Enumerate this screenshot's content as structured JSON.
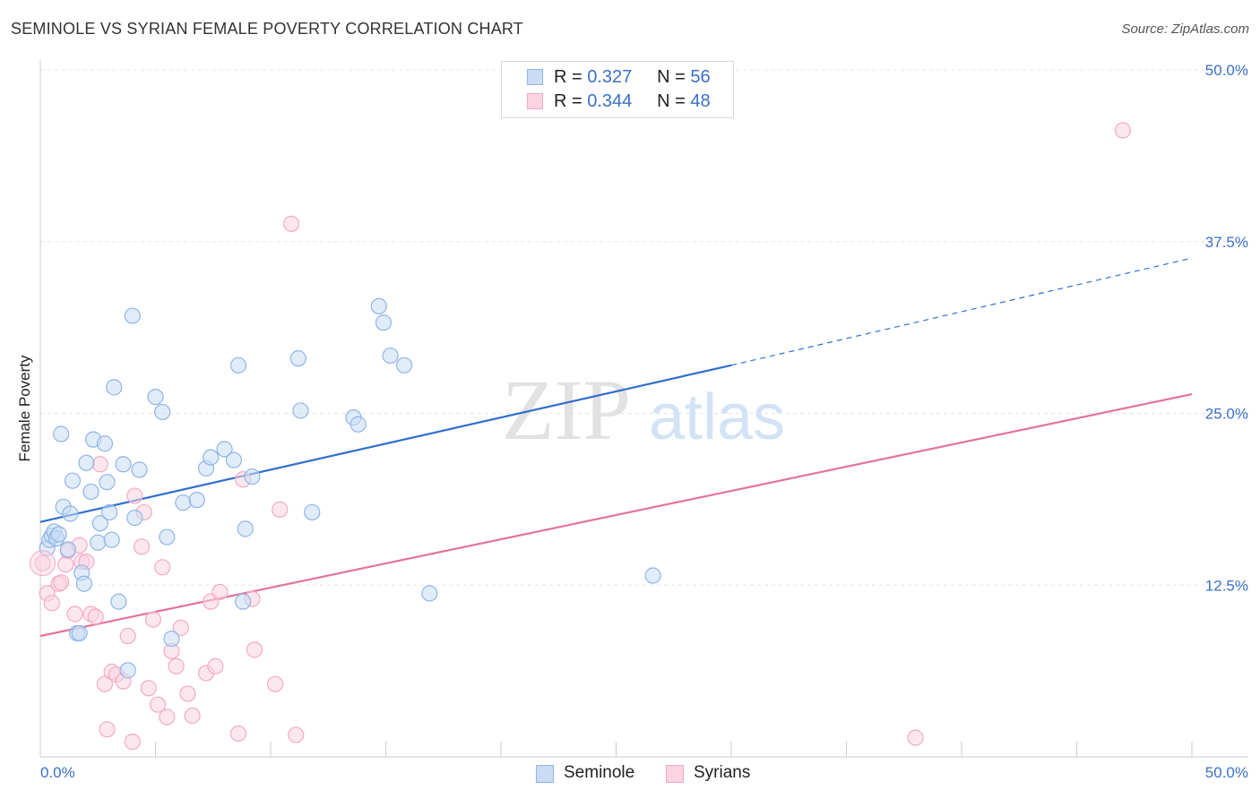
{
  "header": {
    "title": "SEMINOLE VS SYRIAN FEMALE POVERTY CORRELATION CHART",
    "source": "Source: ZipAtlas.com"
  },
  "watermark": {
    "zip": "ZIP",
    "atlas": "atlas"
  },
  "legend": {
    "r_label": "R =",
    "n_label": "N =",
    "rows": [
      {
        "r": "0.327",
        "n": "56"
      },
      {
        "r": "0.344",
        "n": "48"
      }
    ]
  },
  "chart_data": {
    "type": "scatter",
    "title": "SEMINOLE VS SYRIAN FEMALE POVERTY CORRELATION CHART",
    "xlabel": "",
    "ylabel": "Female Poverty",
    "xlim": [
      0,
      50
    ],
    "ylim": [
      0,
      50
    ],
    "x_tick_labels": [
      "0.0%",
      "50.0%"
    ],
    "y_ticks": [
      12.5,
      25.0,
      37.5,
      50.0
    ],
    "y_tick_labels": [
      "12.5%",
      "25.0%",
      "37.5%",
      "50.0%"
    ],
    "grid": true,
    "legend_position": "top-center",
    "series": [
      {
        "name": "Seminole",
        "color": "#8fb5e8",
        "line_color": "#2f6fce",
        "r": 0.327,
        "n": 56,
        "trend": {
          "x0": 0,
          "y0": 17.1,
          "x1": 30,
          "y1": 28.5,
          "dashed_to_x": 50,
          "dashed_to_y": 36.3
        },
        "points": [
          [
            0.3,
            15.2
          ],
          [
            0.4,
            15.8
          ],
          [
            0.5,
            16.1
          ],
          [
            0.6,
            16.4
          ],
          [
            0.7,
            15.9
          ],
          [
            0.8,
            16.2
          ],
          [
            0.9,
            23.5
          ],
          [
            1.0,
            18.2
          ],
          [
            1.2,
            15.1
          ],
          [
            1.3,
            17.7
          ],
          [
            1.4,
            20.1
          ],
          [
            1.6,
            9.0
          ],
          [
            1.7,
            9.0
          ],
          [
            1.8,
            13.4
          ],
          [
            1.9,
            12.6
          ],
          [
            2.0,
            21.4
          ],
          [
            2.2,
            19.3
          ],
          [
            2.3,
            23.1
          ],
          [
            2.5,
            15.6
          ],
          [
            2.6,
            17.0
          ],
          [
            2.8,
            22.8
          ],
          [
            2.9,
            20.0
          ],
          [
            3.0,
            17.8
          ],
          [
            3.1,
            15.8
          ],
          [
            3.2,
            26.9
          ],
          [
            3.4,
            11.3
          ],
          [
            3.6,
            21.3
          ],
          [
            3.8,
            6.3
          ],
          [
            4.0,
            32.1
          ],
          [
            4.1,
            17.4
          ],
          [
            4.3,
            20.9
          ],
          [
            5.0,
            26.2
          ],
          [
            5.3,
            25.1
          ],
          [
            5.5,
            16.0
          ],
          [
            5.7,
            8.6
          ],
          [
            6.2,
            18.5
          ],
          [
            6.8,
            18.7
          ],
          [
            7.2,
            21.0
          ],
          [
            7.4,
            21.8
          ],
          [
            8.0,
            22.4
          ],
          [
            8.4,
            21.6
          ],
          [
            8.6,
            28.5
          ],
          [
            8.8,
            11.3
          ],
          [
            8.9,
            16.6
          ],
          [
            9.2,
            20.4
          ],
          [
            11.2,
            29.0
          ],
          [
            11.3,
            25.2
          ],
          [
            11.8,
            17.8
          ],
          [
            13.6,
            24.7
          ],
          [
            13.8,
            24.2
          ],
          [
            14.7,
            32.8
          ],
          [
            14.9,
            31.6
          ],
          [
            15.2,
            29.2
          ],
          [
            15.8,
            28.5
          ],
          [
            16.9,
            11.9
          ],
          [
            26.6,
            13.2
          ]
        ]
      },
      {
        "name": "Syrians",
        "color": "#f4aac3",
        "line_color": "#e3739b",
        "r": 0.344,
        "n": 48,
        "trend": {
          "x0": 0,
          "y0": 8.8,
          "x1": 50,
          "y1": 26.4
        },
        "points": [
          [
            0.1,
            14.1
          ],
          [
            0.3,
            11.9
          ],
          [
            0.5,
            11.2
          ],
          [
            0.8,
            12.6
          ],
          [
            0.9,
            12.7
          ],
          [
            1.1,
            14.0
          ],
          [
            1.2,
            15.0
          ],
          [
            1.5,
            10.4
          ],
          [
            1.7,
            15.4
          ],
          [
            1.8,
            14.2
          ],
          [
            2.0,
            14.2
          ],
          [
            2.2,
            10.4
          ],
          [
            2.4,
            10.2
          ],
          [
            2.6,
            21.3
          ],
          [
            2.8,
            5.3
          ],
          [
            2.9,
            2.0
          ],
          [
            3.1,
            6.2
          ],
          [
            3.3,
            6.0
          ],
          [
            3.6,
            5.5
          ],
          [
            3.8,
            8.8
          ],
          [
            4.0,
            1.1
          ],
          [
            4.1,
            19.0
          ],
          [
            4.4,
            15.3
          ],
          [
            4.5,
            17.8
          ],
          [
            4.7,
            5.0
          ],
          [
            4.9,
            10.0
          ],
          [
            5.1,
            3.8
          ],
          [
            5.3,
            13.8
          ],
          [
            5.5,
            2.9
          ],
          [
            5.7,
            7.7
          ],
          [
            5.9,
            6.6
          ],
          [
            6.1,
            9.4
          ],
          [
            6.4,
            4.6
          ],
          [
            6.6,
            3.0
          ],
          [
            7.2,
            6.1
          ],
          [
            7.4,
            11.3
          ],
          [
            7.6,
            6.6
          ],
          [
            7.8,
            12.0
          ],
          [
            8.6,
            1.7
          ],
          [
            8.8,
            20.2
          ],
          [
            9.2,
            11.5
          ],
          [
            9.3,
            7.8
          ],
          [
            10.2,
            5.3
          ],
          [
            10.4,
            18.0
          ],
          [
            10.9,
            38.8
          ],
          [
            11.1,
            1.6
          ],
          [
            38.0,
            1.4
          ],
          [
            47.0,
            45.6
          ]
        ]
      }
    ]
  }
}
